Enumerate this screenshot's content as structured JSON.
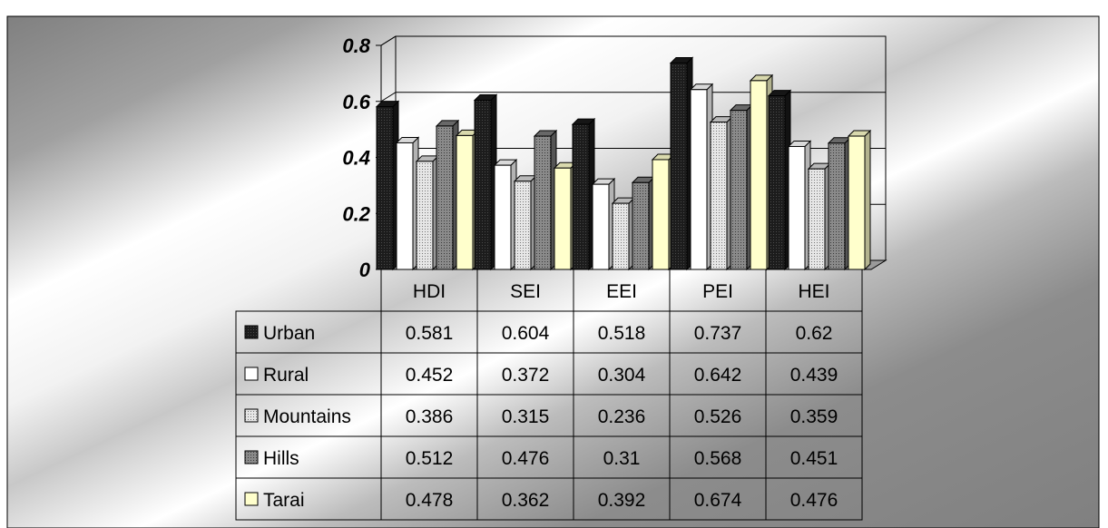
{
  "chart_data": {
    "type": "bar",
    "categories": [
      "HDI",
      "SEI",
      "EEI",
      "PEI",
      "HEI"
    ],
    "series": [
      {
        "name": "Urban",
        "values": [
          0.581,
          0.604,
          0.518,
          0.737,
          0.62
        ],
        "color": "#1a1a1a"
      },
      {
        "name": "Rural",
        "values": [
          0.452,
          0.372,
          0.304,
          0.642,
          0.439
        ],
        "color": "#ffffff"
      },
      {
        "name": "Mountains",
        "values": [
          0.386,
          0.315,
          0.236,
          0.526,
          0.359
        ],
        "color": "#d9d9d9"
      },
      {
        "name": "Hills",
        "values": [
          0.512,
          0.476,
          0.31,
          0.568,
          0.451
        ],
        "color": "#7a7a7a"
      },
      {
        "name": "Tarai",
        "values": [
          0.478,
          0.362,
          0.392,
          0.674,
          0.476
        ],
        "color": "#ffffcc"
      }
    ],
    "value_labels": [
      [
        "0.581",
        "0.604",
        "0.518",
        "0.737",
        "0.62"
      ],
      [
        "0.452",
        "0.372",
        "0.304",
        "0.642",
        "0.439"
      ],
      [
        "0.386",
        "0.315",
        "0.236",
        "0.526",
        "0.359"
      ],
      [
        "0.512",
        "0.476",
        "0.31",
        "0.568",
        "0.451"
      ],
      [
        "0.478",
        "0.362",
        "0.392",
        "0.674",
        "0.476"
      ]
    ],
    "y_tick_labels": [
      "0",
      "0.2",
      "0.4",
      "0.6",
      "0.8"
    ],
    "ylim": [
      0,
      0.8
    ],
    "grid": true,
    "legend": "data-table"
  }
}
